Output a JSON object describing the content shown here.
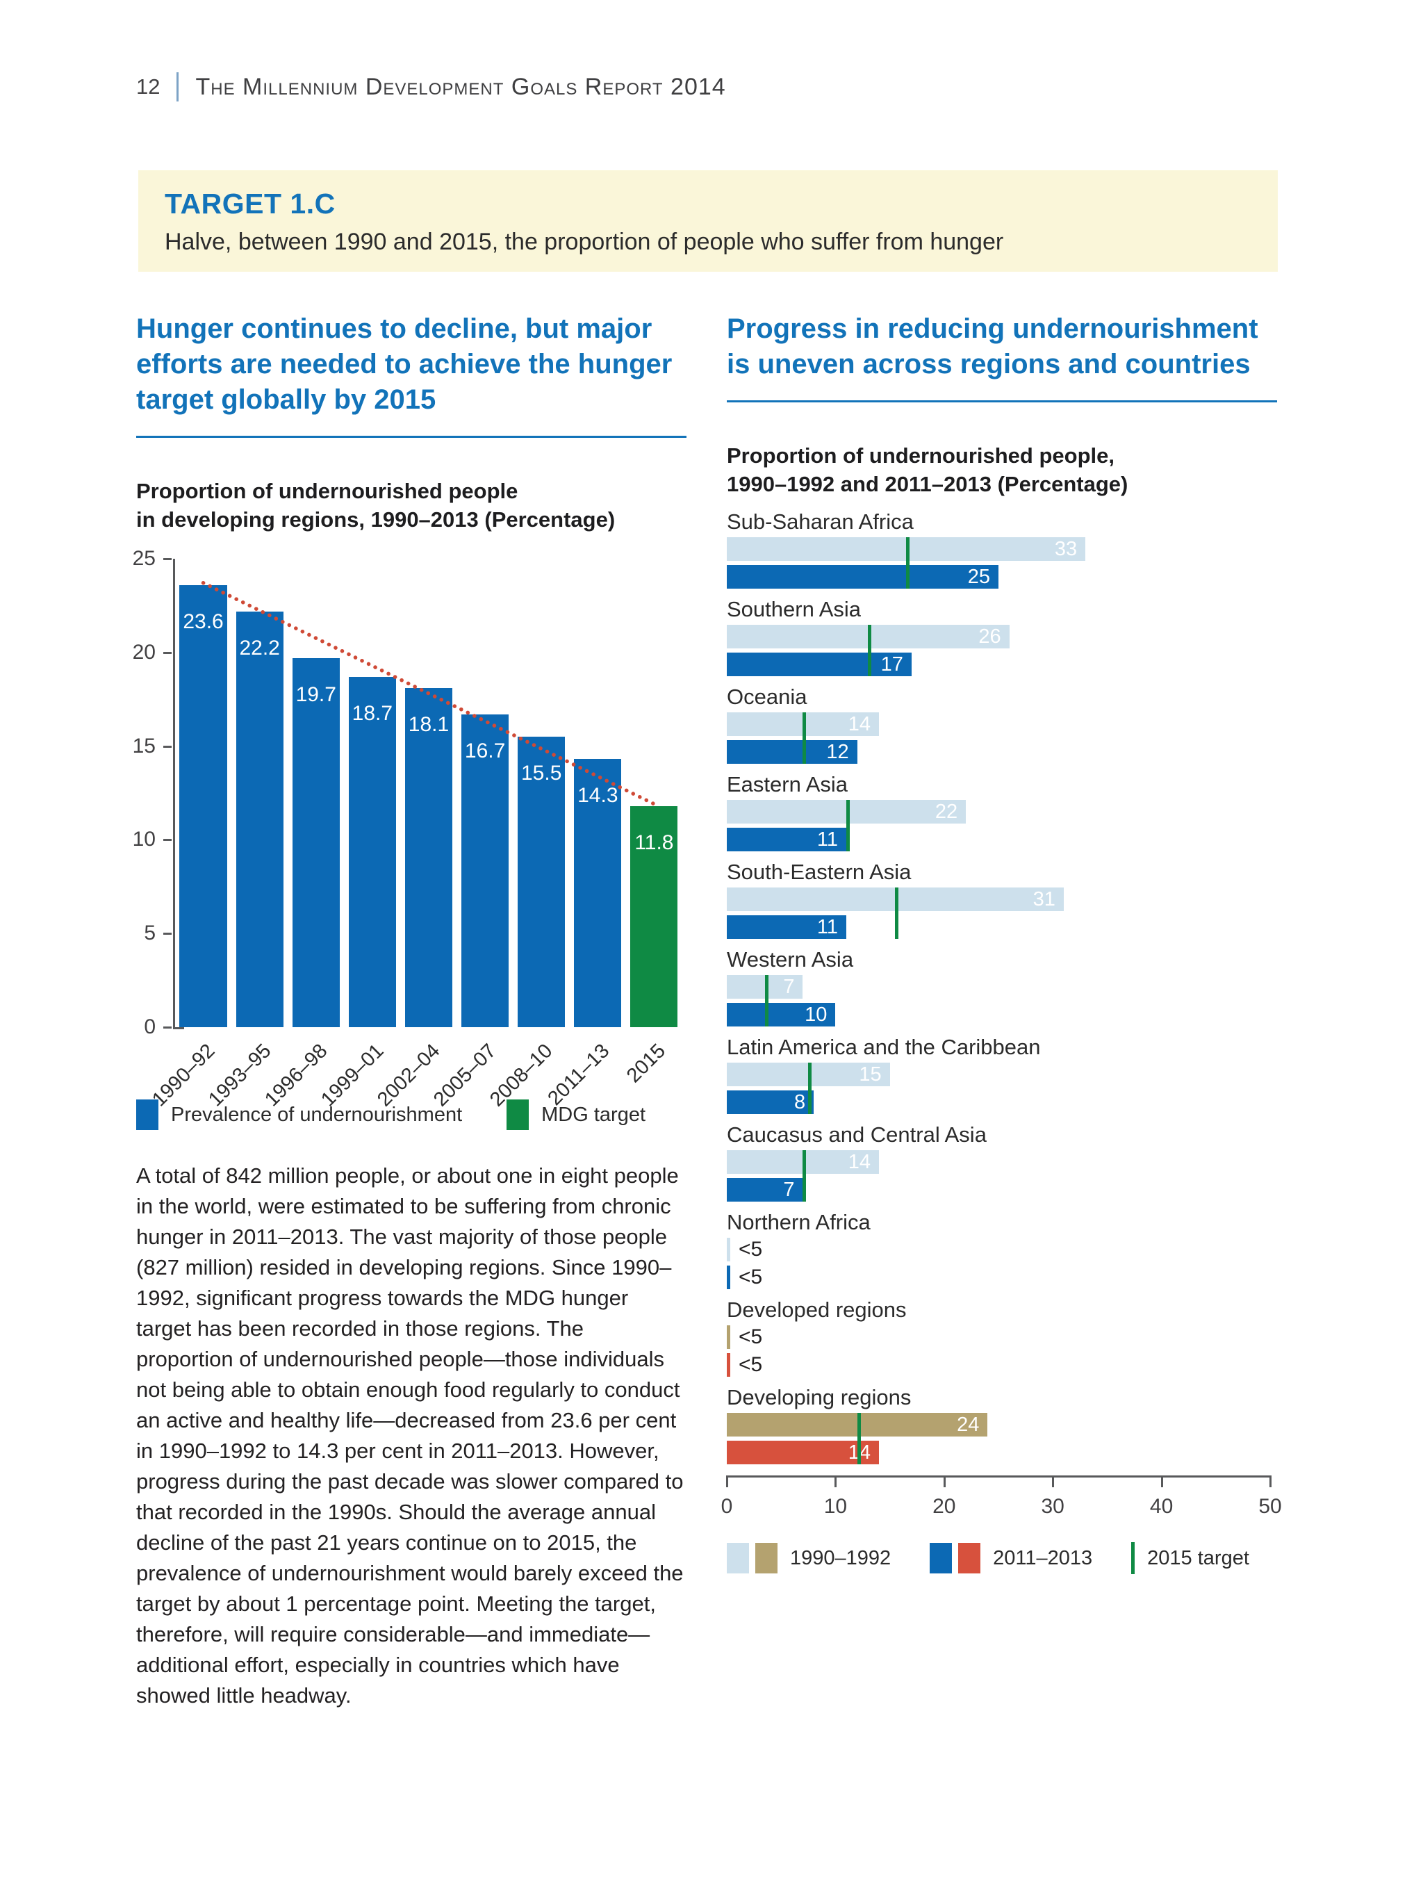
{
  "header": {
    "page_number": "12",
    "report_title": "The Millennium Development Goals Report 2014"
  },
  "target_box": {
    "label": "TARGET 1.C",
    "description": "Halve, between 1990 and 2015, the proportion of people who suffer from hunger"
  },
  "left_column": {
    "heading": "Hunger continues to decline, but major efforts are needed to achieve the hunger target globally by 2015",
    "chart_title_line1": "Proportion of undernourished people",
    "chart_title_line2": "in developing regions, 1990–2013 (Percentage)",
    "paragraph": "A total of 842 million people, or about one in eight people in the world, were estimated to be suffering from chronic hunger in 2011–2013. The vast majority of those people (827 million) resided in developing regions. Since 1990–1992, significant progress towards the MDG hunger target has been recorded in those regions. The proportion of undernourished people—those individuals not being able to obtain enough food regularly to conduct an active and healthy life—decreased from 23.6 per cent in 1990–1992 to 14.3 per cent in 2011–2013. However, progress during the past decade was slower compared to that recorded in the 1990s. Should the average annual decline of the past 21 years continue on to 2015, the prevalence of undernourishment would barely exceed the target by about 1 percentage point. Meeting the target, therefore, will require considerable—and immediate—additional effort, especially in countries which have showed little headway."
  },
  "right_column": {
    "heading": "Progress in reducing undernourishment is uneven across regions and countries",
    "chart_title_line1": "Proportion of undernourished people,",
    "chart_title_line2": "1990–1992 and 2011–2013 (Percentage)"
  },
  "chart_data": [
    {
      "type": "bar",
      "title": "Proportion of undernourished people in developing regions, 1990–2013 (Percentage)",
      "categories": [
        "1990–92",
        "1993–95",
        "1996–98",
        "1999–01",
        "2002–04",
        "2005–07",
        "2008–10",
        "2011–13",
        "2015"
      ],
      "values": [
        23.6,
        22.2,
        19.7,
        18.7,
        18.1,
        16.7,
        15.5,
        14.3,
        11.8
      ],
      "bar_roles": [
        "data",
        "data",
        "data",
        "data",
        "data",
        "data",
        "data",
        "data",
        "target"
      ],
      "ylim": [
        0,
        25
      ],
      "yticks": [
        0,
        5,
        10,
        15,
        20,
        25
      ],
      "grid": false,
      "trend_line": {
        "style": "dotted",
        "from_value": 23.6,
        "to_value": 11.8
      },
      "legend": [
        {
          "label": "Prevalence of undernourishment",
          "color_key": "bar_blue"
        },
        {
          "label": "MDG target",
          "color_key": "target_green"
        }
      ]
    },
    {
      "type": "bar-horizontal",
      "title": "Proportion of undernourished people, 1990–1992 and 2011–2013 (Percentage)",
      "series_names": [
        "1990–1992",
        "2011–2013"
      ],
      "target_label": "2015 target",
      "xlim": [
        0,
        50
      ],
      "xticks": [
        0,
        10,
        20,
        30,
        40,
        50
      ],
      "grid": false,
      "regions": [
        {
          "name": "Sub-Saharan Africa",
          "v1990": 33,
          "v2011": 25,
          "target": 16.5,
          "palette": "blue"
        },
        {
          "name": "Southern Asia",
          "v1990": 26,
          "v2011": 17,
          "target": 13,
          "palette": "blue"
        },
        {
          "name": "Oceania",
          "v1990": 14,
          "v2011": 12,
          "target": 7,
          "palette": "blue"
        },
        {
          "name": "Eastern Asia",
          "v1990": 22,
          "v2011": 11,
          "target": 11,
          "palette": "blue"
        },
        {
          "name": "South-Eastern Asia",
          "v1990": 31,
          "v2011": 11,
          "target": 15.5,
          "palette": "blue"
        },
        {
          "name": "Western Asia",
          "v1990": 7,
          "v2011": 10,
          "target": 3.5,
          "palette": "blue"
        },
        {
          "name": "Latin America and the Caribbean",
          "v1990": 15,
          "v2011": 8,
          "target": 7.5,
          "palette": "blue"
        },
        {
          "name": "Caucasus and Central Asia",
          "v1990": 14,
          "v2011": 7,
          "target": 7,
          "palette": "blue"
        },
        {
          "name": "Northern Africa",
          "v1990": "<5",
          "v2011": "<5",
          "target": null,
          "palette": "blue"
        },
        {
          "name": "Developed regions",
          "v1990": "<5",
          "v2011": "<5",
          "target": null,
          "palette": "warm"
        },
        {
          "name": "Developing regions",
          "v1990": 24,
          "v2011": 14,
          "target": 12,
          "palette": "warm"
        }
      ],
      "legend": [
        {
          "label": "1990–1992",
          "swatch_color_keys": [
            "bar_light_blue",
            "tan"
          ]
        },
        {
          "label": "2011–2013",
          "swatch_color_keys": [
            "bar_blue",
            "red"
          ]
        },
        {
          "label": "2015 target",
          "swatch": "line",
          "color_key": "target_green"
        }
      ]
    }
  ],
  "colors": {
    "heading_blue": "#1273b9",
    "bar_blue": "#0c69b4",
    "bar_light_blue": "#cde0ec",
    "target_green": "#0f8a44",
    "tan": "#b4a26f",
    "red": "#d7513d",
    "trend_red": "#cf4a36",
    "box_bg": "#faf6d9",
    "axis_gray": "#58595b",
    "text_dark": "#232122"
  }
}
